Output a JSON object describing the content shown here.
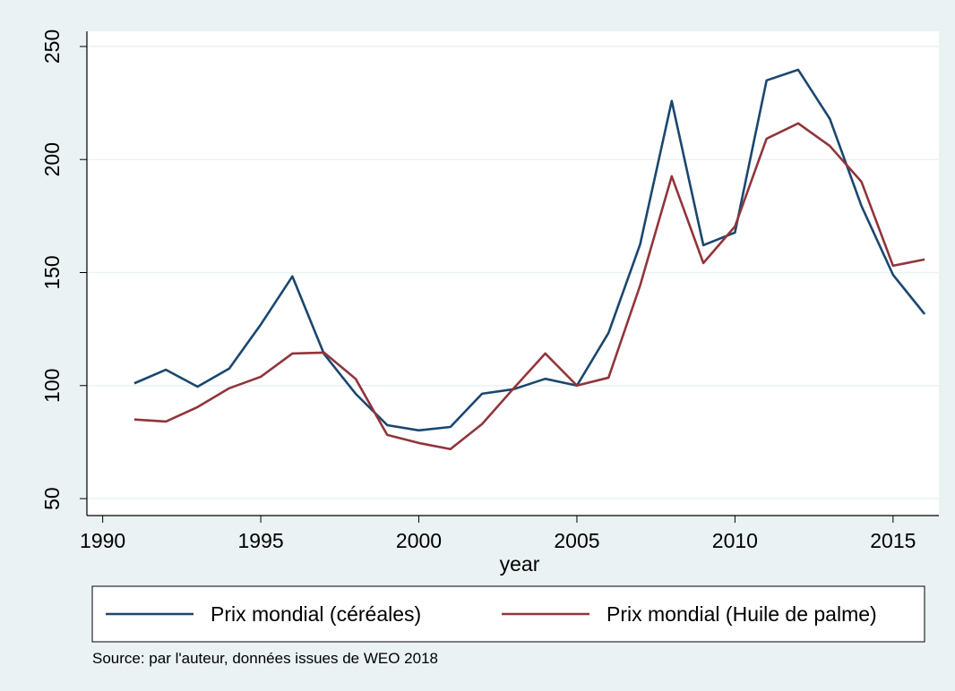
{
  "chart_data": {
    "type": "line",
    "x": [
      1991,
      1992,
      1993,
      1994,
      1995,
      1996,
      1997,
      1998,
      1999,
      2000,
      2001,
      2002,
      2003,
      2004,
      2005,
      2006,
      2007,
      2008,
      2009,
      2010,
      2011,
      2012,
      2013,
      2014,
      2015,
      2016
    ],
    "series": [
      {
        "name": "Prix mondial (céréales)",
        "color": "#1a476f",
        "values": [
          101,
          107,
          99.5,
          107.5,
          127,
          148.3,
          114,
          96.4,
          82.5,
          80.2,
          81.7,
          96.4,
          98.4,
          103,
          100,
          123.3,
          162.5,
          225.9,
          162.1,
          167.7,
          235,
          239.7,
          218,
          179.5,
          149,
          131.6
        ]
      },
      {
        "name": "Prix mondial (Huile de palme)",
        "color": "#90353b",
        "values": [
          85,
          84.1,
          90.5,
          98.8,
          103.9,
          114.2,
          114.6,
          103,
          78.2,
          74.6,
          71.9,
          83,
          98.8,
          114.2,
          100,
          103.5,
          144.3,
          192.6,
          154.2,
          170.4,
          209.2,
          216,
          206,
          190.2,
          153,
          155.8
        ]
      }
    ],
    "xlabel": "year",
    "xlim": [
      1989.5,
      2016.45
    ],
    "xticks": [
      1990,
      1995,
      2000,
      2005,
      2010,
      2015
    ],
    "ylim": [
      42.5,
      256.7
    ],
    "yticks": [
      50,
      100,
      150,
      200,
      250
    ],
    "grid": true,
    "legend": "bottom",
    "note": "Source: par l'auteur, données issues de WEO 2018"
  }
}
